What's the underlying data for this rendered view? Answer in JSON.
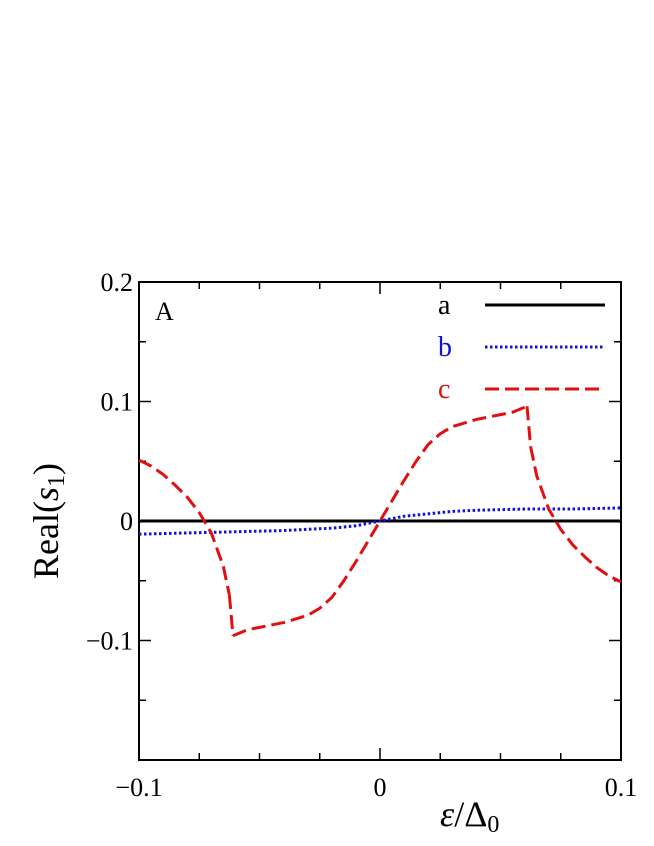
{
  "chart_data": {
    "type": "line",
    "panel_label": "A",
    "xlabel": "ε/Δ0",
    "ylabel": "Real(s1)",
    "xlim": [
      -0.1,
      0.1
    ],
    "ylim": [
      -0.2,
      0.2
    ],
    "x_ticks": [
      {
        "value": -0.1,
        "label": "−0.1"
      },
      {
        "value": 0,
        "label": "0"
      },
      {
        "value": 0.1,
        "label": "0.1"
      }
    ],
    "y_ticks": [
      {
        "value": 0.2,
        "label": "0.2"
      },
      {
        "value": 0.1,
        "label": "0.1"
      },
      {
        "value": 0,
        "label": "0"
      },
      {
        "value": -0.1,
        "label": "−0.1"
      }
    ],
    "legend_position": "top-right",
    "grid": false,
    "series": [
      {
        "name": "a",
        "color": "#000000",
        "style": "solid",
        "x": [
          -0.1,
          0.1
        ],
        "y": [
          0,
          0
        ]
      },
      {
        "name": "b",
        "color": "#1010e0",
        "style": "dotted",
        "x": [
          -0.1,
          -0.08,
          -0.06,
          -0.04,
          -0.02,
          -0.01,
          0,
          0.01,
          0.02,
          0.03,
          0.04,
          0.06,
          0.08,
          0.1
        ],
        "y": [
          -0.011,
          -0.01,
          -0.009,
          -0.008,
          -0.006,
          -0.004,
          0,
          0.004,
          0.006,
          0.008,
          0.009,
          0.01,
          0.01,
          0.011
        ]
      },
      {
        "name": "c",
        "color": "#e01010",
        "style": "dashed",
        "segments": [
          {
            "x": [
              -0.1,
              -0.095,
              -0.09,
              -0.085,
              -0.08,
              -0.075,
              -0.07,
              -0.065,
              -0.0625
            ],
            "y": [
              0.051,
              0.046,
              0.039,
              0.03,
              0.02,
              0.007,
              -0.01,
              -0.038,
              -0.062
            ]
          },
          {
            "x": [
              -0.0625,
              -0.061
            ],
            "y": [
              -0.062,
              -0.096
            ]
          },
          {
            "x": [
              -0.061,
              -0.055,
              -0.05,
              -0.045,
              -0.04,
              -0.035,
              -0.03,
              -0.025,
              -0.02,
              -0.015,
              -0.01,
              -0.005,
              0,
              0.005,
              0.01,
              0.015,
              0.02,
              0.025,
              0.03,
              0.035,
              0.04,
              0.045,
              0.05,
              0.055,
              0.061
            ],
            "y": [
              -0.096,
              -0.091,
              -0.089,
              -0.087,
              -0.085,
              -0.082,
              -0.079,
              -0.073,
              -0.064,
              -0.05,
              -0.034,
              -0.017,
              0,
              0.017,
              0.034,
              0.05,
              0.064,
              0.073,
              0.079,
              0.082,
              0.085,
              0.087,
              0.089,
              0.091,
              0.096
            ]
          },
          {
            "x": [
              0.061,
              0.0625
            ],
            "y": [
              0.096,
              0.062
            ]
          },
          {
            "x": [
              0.0625,
              0.065,
              0.07,
              0.075,
              0.08,
              0.085,
              0.09,
              0.095,
              0.1
            ],
            "y": [
              0.062,
              0.038,
              0.01,
              -0.007,
              -0.02,
              -0.03,
              -0.039,
              -0.046,
              -0.051
            ]
          }
        ]
      }
    ]
  }
}
